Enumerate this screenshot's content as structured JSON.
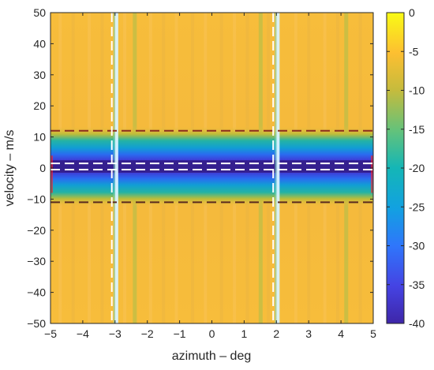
{
  "chart_data": {
    "type": "heatmap",
    "title": "",
    "xlabel": "azimuth – deg",
    "ylabel": "velocity – m/s",
    "xlim": [
      -5,
      5
    ],
    "ylim": [
      -50,
      50
    ],
    "x_ticks": [
      "−5",
      "−4",
      "−3",
      "−2",
      "−1",
      "0",
      "1",
      "2",
      "3",
      "4",
      "5"
    ],
    "y_ticks": [
      "−50",
      "−40",
      "−30",
      "−20",
      "−10",
      "0",
      "10",
      "20",
      "30",
      "40",
      "50"
    ],
    "colorbar": {
      "colormap": "parula",
      "clim": [
        -40,
        0
      ],
      "ticks": [
        "0",
        "-5",
        "-10",
        "-15",
        "-20",
        "-25",
        "-30",
        "-35",
        "-40"
      ]
    },
    "background_level_db": -8,
    "stopband_min_db": -40,
    "bright_vertical_stripes_deg": [
      -2.95,
      2.05
    ],
    "dashed_vertical_lines": [
      {
        "x": -3.1,
        "color": "#ffffff"
      },
      {
        "x": 1.9,
        "color": "#ffffff"
      }
    ],
    "dashed_horizontal_lines": [
      {
        "y": 1.5,
        "color": "#ffffff"
      },
      {
        "y": -0.5,
        "color": "#ffffff"
      },
      {
        "y": 12,
        "color": "#8b2d1f"
      },
      {
        "y": -11,
        "color": "#5a2a1f"
      }
    ],
    "clutter_band": {
      "y_low": -11,
      "y_high": 12,
      "notch_low": -1,
      "notch_high": 2,
      "edge_color": "#ff2222"
    }
  }
}
